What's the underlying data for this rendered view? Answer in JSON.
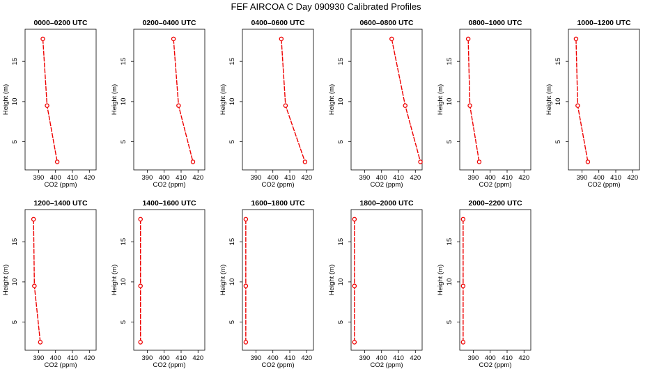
{
  "figure_title": "FEF AIRCOA C  Day 090930  Calibrated Profiles",
  "colors": {
    "series": "#ee0000",
    "axis": "#000000"
  },
  "chart_data": [
    {
      "type": "line",
      "title": "0000–0200 UTC",
      "xlabel": "CO2 (ppm)",
      "ylabel": "Height (m)",
      "xlim": [
        382,
        424
      ],
      "ylim": [
        1.5,
        19.0
      ],
      "xticks": [
        390,
        400,
        410,
        420
      ],
      "yticks": [
        5,
        10,
        15
      ],
      "grid": false,
      "series": [
        {
          "values": [
            {
              "x": 392.5,
              "y": 17.8
            },
            {
              "x": 395.0,
              "y": 9.5
            },
            {
              "x": 401.0,
              "y": 2.5
            }
          ]
        }
      ]
    },
    {
      "type": "line",
      "title": "0200–0400 UTC",
      "xlabel": "CO2 (ppm)",
      "ylabel": "Height (m)",
      "xlim": [
        382,
        424
      ],
      "ylim": [
        1.5,
        19.0
      ],
      "xticks": [
        390,
        400,
        410,
        420
      ],
      "yticks": [
        5,
        10,
        15
      ],
      "grid": false,
      "series": [
        {
          "values": [
            {
              "x": 405.5,
              "y": 17.8
            },
            {
              "x": 408.5,
              "y": 9.5
            },
            {
              "x": 417.0,
              "y": 2.5
            }
          ]
        }
      ]
    },
    {
      "type": "line",
      "title": "0400–0600 UTC",
      "xlabel": "CO2 (ppm)",
      "ylabel": "Height (m)",
      "xlim": [
        382,
        424
      ],
      "ylim": [
        1.5,
        19.0
      ],
      "xticks": [
        390,
        400,
        410,
        420
      ],
      "yticks": [
        5,
        10,
        15
      ],
      "grid": false,
      "series": [
        {
          "values": [
            {
              "x": 405.0,
              "y": 17.8
            },
            {
              "x": 407.5,
              "y": 9.5
            },
            {
              "x": 419.0,
              "y": 2.5
            }
          ]
        }
      ]
    },
    {
      "type": "line",
      "title": "0600–0800 UTC",
      "xlabel": "CO2 (ppm)",
      "ylabel": "Height (m)",
      "xlim": [
        382,
        424
      ],
      "ylim": [
        1.5,
        19.0
      ],
      "xticks": [
        390,
        400,
        410,
        420
      ],
      "yticks": [
        5,
        10,
        15
      ],
      "grid": false,
      "series": [
        {
          "values": [
            {
              "x": 406.0,
              "y": 17.8
            },
            {
              "x": 414.0,
              "y": 9.5
            },
            {
              "x": 423.0,
              "y": 2.5
            }
          ]
        }
      ]
    },
    {
      "type": "line",
      "title": "0800–1000 UTC",
      "xlabel": "CO2 (ppm)",
      "ylabel": "Height (m)",
      "xlim": [
        382,
        424
      ],
      "ylim": [
        1.5,
        19.0
      ],
      "xticks": [
        390,
        400,
        410,
        420
      ],
      "yticks": [
        5,
        10,
        15
      ],
      "grid": false,
      "series": [
        {
          "values": [
            {
              "x": 387.0,
              "y": 17.8
            },
            {
              "x": 388.0,
              "y": 9.5
            },
            {
              "x": 393.5,
              "y": 2.5
            }
          ]
        }
      ]
    },
    {
      "type": "line",
      "title": "1000–1200 UTC",
      "xlabel": "CO2 (ppm)",
      "ylabel": "Height (m)",
      "xlim": [
        382,
        424
      ],
      "ylim": [
        1.5,
        19.0
      ],
      "xticks": [
        390,
        400,
        410,
        420
      ],
      "yticks": [
        5,
        10,
        15
      ],
      "grid": false,
      "series": [
        {
          "values": [
            {
              "x": 386.5,
              "y": 17.8
            },
            {
              "x": 387.5,
              "y": 9.5
            },
            {
              "x": 393.5,
              "y": 2.5
            }
          ]
        }
      ]
    },
    {
      "type": "line",
      "title": "1200–1400 UTC",
      "xlabel": "CO2 (ppm)",
      "ylabel": "Height (m)",
      "xlim": [
        382,
        424
      ],
      "ylim": [
        1.5,
        19.0
      ],
      "xticks": [
        390,
        400,
        410,
        420
      ],
      "yticks": [
        5,
        10,
        15
      ],
      "grid": false,
      "series": [
        {
          "values": [
            {
              "x": 387.0,
              "y": 17.8
            },
            {
              "x": 387.5,
              "y": 9.5
            },
            {
              "x": 391.0,
              "y": 2.5
            }
          ]
        }
      ]
    },
    {
      "type": "line",
      "title": "1400–1600 UTC",
      "xlabel": "CO2 (ppm)",
      "ylabel": "Height (m)",
      "xlim": [
        382,
        424
      ],
      "ylim": [
        1.5,
        19.0
      ],
      "xticks": [
        390,
        400,
        410,
        420
      ],
      "yticks": [
        5,
        10,
        15
      ],
      "grid": false,
      "series": [
        {
          "values": [
            {
              "x": 386.0,
              "y": 17.8
            },
            {
              "x": 386.0,
              "y": 9.5
            },
            {
              "x": 386.0,
              "y": 2.5
            }
          ]
        }
      ]
    },
    {
      "type": "line",
      "title": "1600–1800 UTC",
      "xlabel": "CO2 (ppm)",
      "ylabel": "Height (m)",
      "xlim": [
        382,
        424
      ],
      "ylim": [
        1.5,
        19.0
      ],
      "xticks": [
        390,
        400,
        410,
        420
      ],
      "yticks": [
        5,
        10,
        15
      ],
      "grid": false,
      "series": [
        {
          "values": [
            {
              "x": 384.0,
              "y": 17.8
            },
            {
              "x": 384.0,
              "y": 9.5
            },
            {
              "x": 384.0,
              "y": 2.5
            }
          ]
        }
      ]
    },
    {
      "type": "line",
      "title": "1800–2000 UTC",
      "xlabel": "CO2 (ppm)",
      "ylabel": "Height (m)",
      "xlim": [
        382,
        424
      ],
      "ylim": [
        1.5,
        19.0
      ],
      "xticks": [
        390,
        400,
        410,
        420
      ],
      "yticks": [
        5,
        10,
        15
      ],
      "grid": false,
      "series": [
        {
          "values": [
            {
              "x": 384.0,
              "y": 17.8
            },
            {
              "x": 384.0,
              "y": 9.5
            },
            {
              "x": 384.0,
              "y": 2.5
            }
          ]
        }
      ]
    },
    {
      "type": "line",
      "title": "2000–2200 UTC",
      "xlabel": "CO2 (ppm)",
      "ylabel": "Height (m)",
      "xlim": [
        382,
        424
      ],
      "ylim": [
        1.5,
        19.0
      ],
      "xticks": [
        390,
        400,
        410,
        420
      ],
      "yticks": [
        5,
        10,
        15
      ],
      "grid": false,
      "series": [
        {
          "values": [
            {
              "x": 384.0,
              "y": 17.8
            },
            {
              "x": 384.0,
              "y": 9.5
            },
            {
              "x": 384.0,
              "y": 2.5
            }
          ]
        }
      ]
    }
  ]
}
